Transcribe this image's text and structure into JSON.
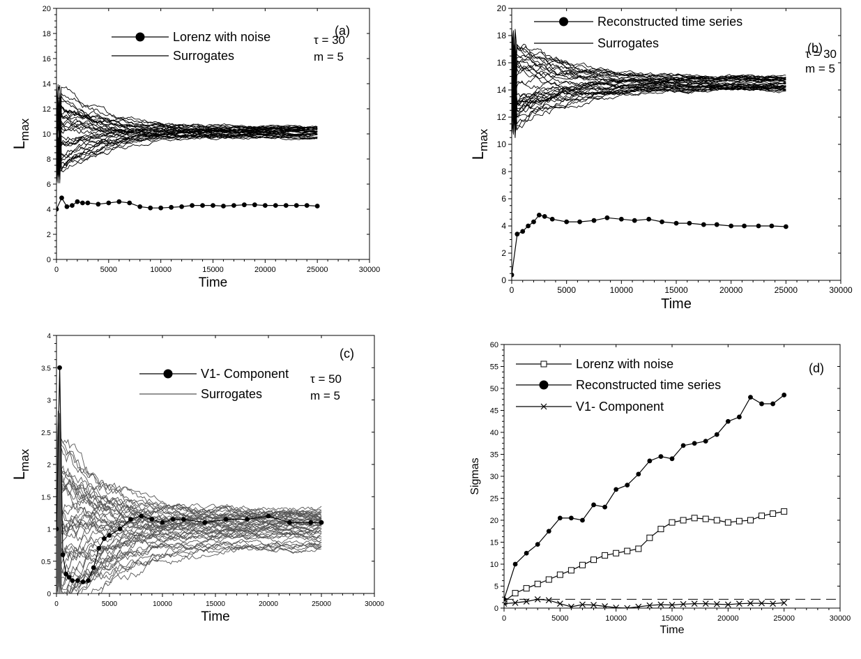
{
  "chart_data": [
    {
      "type": "line",
      "panel_label": "(a)",
      "xlabel": "Time",
      "ylabel_main": "L",
      "ylabel_sub": "max",
      "xlim": [
        0,
        30000
      ],
      "ylim": [
        0,
        20
      ],
      "xticks": [
        0,
        5000,
        10000,
        15000,
        20000,
        25000,
        30000
      ],
      "yticks": [
        0,
        2,
        4,
        6,
        8,
        10,
        12,
        14,
        16,
        18,
        20
      ],
      "annotations": [
        "τ = 30",
        "m = 5"
      ],
      "legend": [
        "Lorenz with noise",
        "Surrogates"
      ],
      "series": [
        {
          "name": "Lorenz with noise",
          "marker": "filled-circle",
          "x": [
            0,
            500,
            1000,
            1500,
            2000,
            2500,
            3000,
            4000,
            5000,
            6000,
            7000,
            8000,
            9000,
            10000,
            11000,
            12000,
            13000,
            14000,
            15000,
            16000,
            17000,
            18000,
            19000,
            20000,
            21000,
            22000,
            23000,
            24000,
            25000
          ],
          "values": [
            4.0,
            4.9,
            4.2,
            4.3,
            4.6,
            4.5,
            4.5,
            4.4,
            4.5,
            4.6,
            4.5,
            4.2,
            4.1,
            4.1,
            4.15,
            4.2,
            4.3,
            4.3,
            4.3,
            4.25,
            4.3,
            4.35,
            4.35,
            4.3,
            4.3,
            4.3,
            4.3,
            4.3,
            4.25
          ]
        },
        {
          "name": "Surrogates",
          "count": 34,
          "start": 10.0,
          "converge_min": 9.5,
          "converge_max": 10.7,
          "spread_early": 3.6
        }
      ]
    },
    {
      "type": "line",
      "panel_label": "(b)",
      "xlabel": "Time",
      "ylabel_main": "L",
      "ylabel_sub": "max",
      "xlim": [
        0,
        30000
      ],
      "ylim": [
        0,
        20
      ],
      "xticks": [
        0,
        5000,
        10000,
        15000,
        20000,
        25000,
        30000
      ],
      "yticks": [
        0,
        2,
        4,
        6,
        8,
        10,
        12,
        14,
        16,
        18,
        20
      ],
      "annotations": [
        "τ = 30",
        "m = 5"
      ],
      "legend": [
        "Reconstructed time series",
        "Surrogates"
      ],
      "series": [
        {
          "name": "Reconstructed time series",
          "marker": "filled-circle",
          "x": [
            0,
            500,
            1000,
            1500,
            2000,
            2500,
            3000,
            3700,
            5000,
            6200,
            7500,
            8700,
            10000,
            11200,
            12500,
            13700,
            15000,
            16200,
            17500,
            18700,
            20000,
            21200,
            22500,
            23700,
            25000
          ],
          "values": [
            0.4,
            3.4,
            3.6,
            4.0,
            4.3,
            4.8,
            4.7,
            4.5,
            4.3,
            4.3,
            4.4,
            4.6,
            4.5,
            4.4,
            4.5,
            4.3,
            4.2,
            4.2,
            4.1,
            4.1,
            4.0,
            4.0,
            4.0,
            4.0,
            3.95
          ]
        },
        {
          "name": "Surrogates",
          "count": 34,
          "start": 14.5,
          "converge_min": 14.0,
          "converge_max": 15.0,
          "spread_early": 3.8
        }
      ]
    },
    {
      "type": "line",
      "panel_label": "(c)",
      "xlabel": "Time",
      "ylabel_main": "L",
      "ylabel_sub": "max",
      "xlim": [
        0,
        30000
      ],
      "ylim": [
        0,
        4
      ],
      "xticks": [
        0,
        5000,
        10000,
        15000,
        20000,
        25000,
        30000
      ],
      "yticks": [
        0,
        0.5,
        1,
        1.5,
        2,
        2.5,
        3,
        3.5,
        4
      ],
      "annotations": [
        "τ = 50",
        "m = 5"
      ],
      "legend": [
        "V1- Component",
        "Surrogates"
      ],
      "series": [
        {
          "name": "V1- Component",
          "marker": "filled-circle",
          "x": [
            0,
            300,
            600,
            900,
            1200,
            1500,
            2000,
            2500,
            3000,
            3500,
            4000,
            4500,
            5000,
            6000,
            7000,
            8000,
            9000,
            10000,
            11000,
            12000,
            14000,
            16000,
            18000,
            20000,
            22000,
            24000,
            25000
          ],
          "values": [
            1.0,
            3.5,
            0.6,
            0.3,
            0.25,
            0.2,
            0.2,
            0.18,
            0.2,
            0.4,
            0.7,
            0.85,
            0.9,
            1.0,
            1.15,
            1.2,
            1.15,
            1.1,
            1.15,
            1.15,
            1.1,
            1.15,
            1.15,
            1.2,
            1.1,
            1.1,
            1.1
          ]
        },
        {
          "name": "Surrogates",
          "count": 46,
          "start": 1.1,
          "converge_min": 0.7,
          "converge_max": 1.3,
          "spread_early": 1.6
        }
      ]
    },
    {
      "type": "line",
      "panel_label": "(d)",
      "xlabel": "Time",
      "ylabel": "Sigmas",
      "xlim": [
        0,
        30000
      ],
      "ylim": [
        0,
        60
      ],
      "xticks": [
        0,
        5000,
        10000,
        15000,
        20000,
        25000,
        30000
      ],
      "yticks": [
        0,
        5,
        10,
        15,
        20,
        25,
        30,
        35,
        40,
        45,
        50,
        55,
        60
      ],
      "legend": [
        "Lorenz with noise",
        "Reconstructed time series",
        "V1- Component"
      ],
      "threshold": 2,
      "series": [
        {
          "name": "Lorenz with noise",
          "marker": "open-square",
          "x": [
            0,
            1000,
            2000,
            3000,
            4000,
            5000,
            6000,
            7000,
            8000,
            9000,
            10000,
            11000,
            12000,
            13000,
            14000,
            15000,
            16000,
            17000,
            18000,
            19000,
            20000,
            21000,
            22000,
            23000,
            24000,
            25000
          ],
          "values": [
            1.5,
            3.4,
            4.5,
            5.5,
            6.5,
            7.6,
            8.6,
            9.8,
            11.0,
            12.0,
            12.5,
            13.0,
            13.5,
            16.0,
            18.0,
            19.5,
            20.0,
            20.5,
            20.3,
            20.0,
            19.5,
            19.8,
            20.0,
            21.0,
            21.5,
            22.0
          ]
        },
        {
          "name": "Reconstructed time series",
          "marker": "filled-circle",
          "x": [
            0,
            1000,
            2000,
            3000,
            4000,
            5000,
            6000,
            7000,
            8000,
            9000,
            10000,
            11000,
            12000,
            13000,
            14000,
            15000,
            16000,
            17000,
            18000,
            19000,
            20000,
            21000,
            22000,
            23000,
            24000,
            25000
          ],
          "values": [
            2.0,
            10.0,
            12.5,
            14.5,
            17.5,
            20.5,
            20.5,
            20.0,
            23.5,
            23.0,
            27.0,
            28.0,
            30.5,
            33.5,
            34.5,
            34.0,
            37.0,
            37.5,
            38.0,
            39.5,
            42.5,
            43.5,
            48.0,
            46.5,
            46.5,
            48.5
          ]
        },
        {
          "name": "V1- Component",
          "marker": "x",
          "x": [
            0,
            1000,
            2000,
            3000,
            4000,
            5000,
            6000,
            7000,
            8000,
            9000,
            10000,
            11000,
            12000,
            13000,
            14000,
            15000,
            16000,
            17000,
            18000,
            19000,
            20000,
            21000,
            22000,
            23000,
            24000,
            25000
          ],
          "values": [
            1.0,
            1.2,
            1.5,
            2.0,
            1.8,
            1.0,
            0.3,
            0.8,
            0.7,
            0.4,
            0.1,
            0.0,
            0.3,
            0.6,
            0.8,
            0.7,
            0.9,
            1.0,
            1.0,
            0.9,
            0.8,
            1.0,
            1.1,
            1.1,
            1.0,
            1.2
          ]
        }
      ]
    }
  ]
}
